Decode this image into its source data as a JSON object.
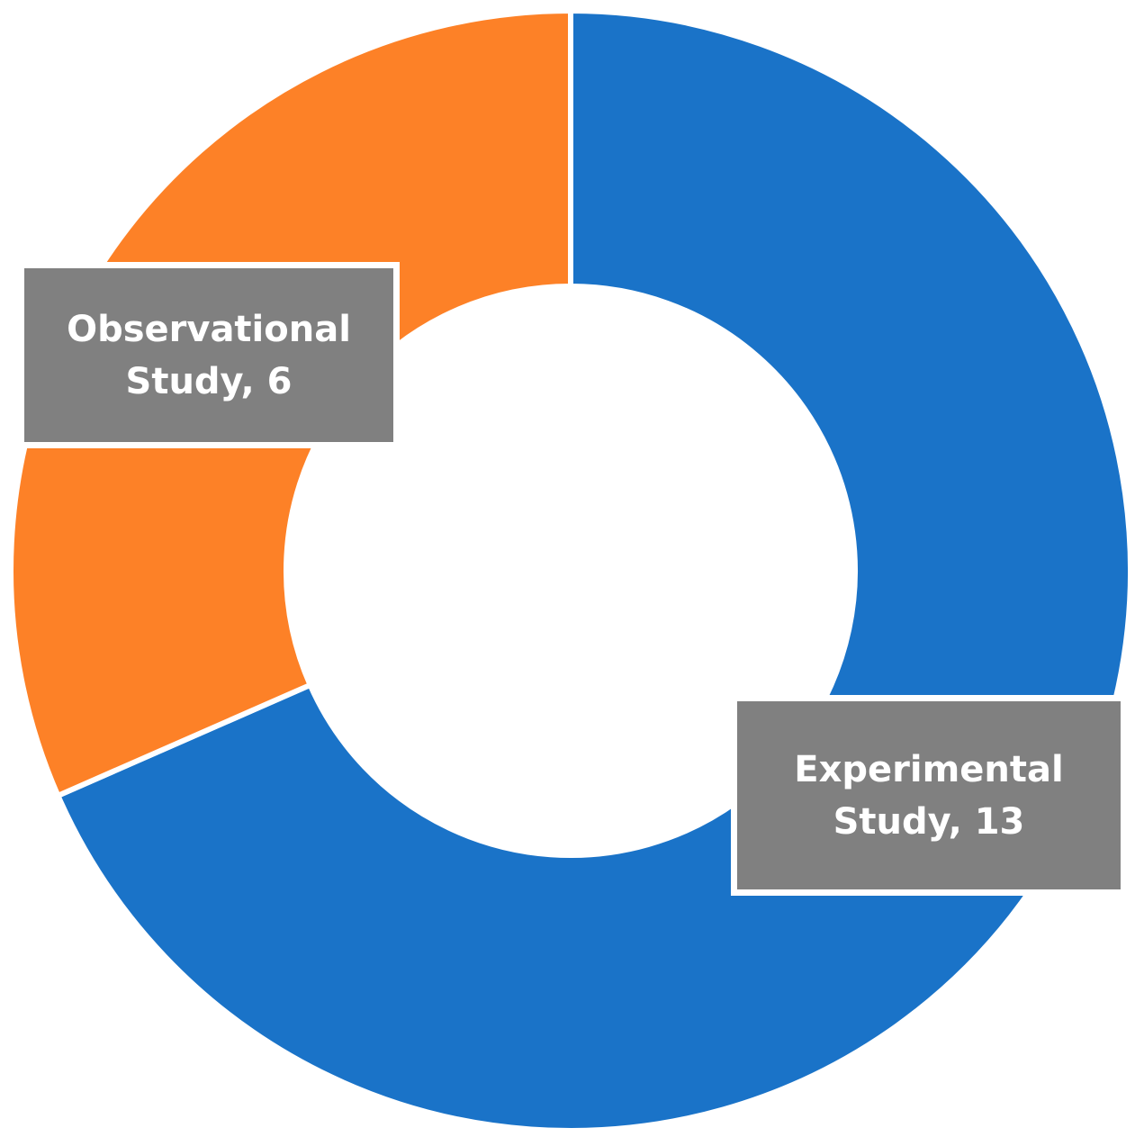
{
  "chart_data": {
    "type": "pie",
    "variant": "donut",
    "title": "",
    "slices": [
      {
        "label": "Experimental Study",
        "value": 13,
        "color": "#1A73C8",
        "data_label_line1": "Experimental",
        "data_label_line2": "Study, 13"
      },
      {
        "label": "Observational Study",
        "value": 6,
        "color": "#FD8127",
        "data_label_line1": "Observational",
        "data_label_line2": "Study, 6"
      }
    ],
    "start_angle": "12 o'clock",
    "direction": "clockwise",
    "legend": "none",
    "data_label_background": "#808080",
    "data_label_text_color": "#FFFFFF"
  }
}
